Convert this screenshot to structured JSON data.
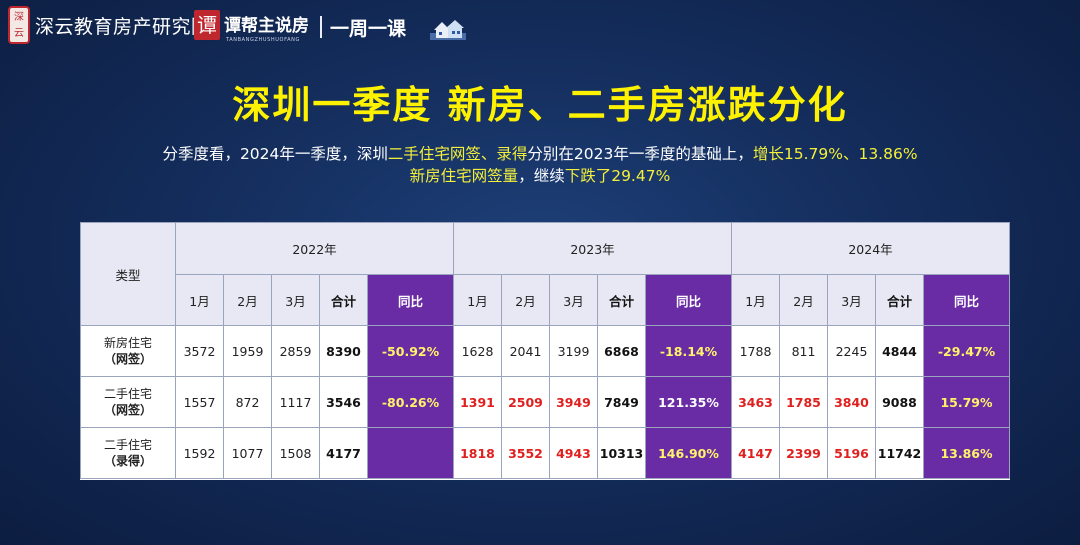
{
  "header": {
    "seal_text": "深云",
    "org_name": "深云教育房产研究院",
    "brand_seal": "谭",
    "brand_name": "谭帮主说房",
    "brand_sub": "TANBANGZHUSHUOFANG",
    "series_name": "一周一课",
    "icon": "house-icon"
  },
  "title": "深圳一季度  新房、二手房涨跌分化",
  "subtitle": {
    "line1_a": "分季度看，2024年一季度，深圳",
    "line1_b": "二手住宅网签、录得",
    "line1_c": "分别在2023年一季度的基础上，",
    "line1_d": "增长15.79%、13.86%",
    "line2_a": "新房住宅网签量",
    "line2_b": "，继续",
    "line2_c": "下跌了29.47%"
  },
  "table": {
    "type_header": "类型",
    "years": [
      "2022年",
      "2023年",
      "2024年"
    ],
    "sub_headers": [
      "1月",
      "2月",
      "3月",
      "合计",
      "同比"
    ],
    "rows": [
      {
        "label_1": "新房住宅",
        "label_2": "（网签）",
        "y2022": [
          "3572",
          "1959",
          "2859",
          "8390",
          "-50.92%"
        ],
        "y2023": [
          "1628",
          "2041",
          "3199",
          "6868",
          "-18.14%"
        ],
        "y2024": [
          "1788",
          "811",
          "2245",
          "4844",
          "-29.47%"
        ]
      },
      {
        "label_1": "二手住宅",
        "label_2": "（网签）",
        "y2022": [
          "1557",
          "872",
          "1117",
          "3546",
          "-80.26%"
        ],
        "y2023": [
          "1391",
          "2509",
          "3949",
          "7849",
          "121.35%"
        ],
        "y2024": [
          "3463",
          "1785",
          "3840",
          "9088",
          "15.79%"
        ]
      },
      {
        "label_1": "二手住宅",
        "label_2": "（录得）",
        "y2022": [
          "1592",
          "1077",
          "1508",
          "4177",
          ""
        ],
        "y2023": [
          "1818",
          "3552",
          "4943",
          "10313",
          "146.90%"
        ],
        "y2024": [
          "4147",
          "2399",
          "5196",
          "11742",
          "13.86%"
        ]
      }
    ]
  },
  "colors": {
    "background": "#142d5c",
    "title": "#fef200",
    "highlight": "#f3ef3a",
    "purple": "#6a2ca5",
    "red": "#e0201f"
  }
}
